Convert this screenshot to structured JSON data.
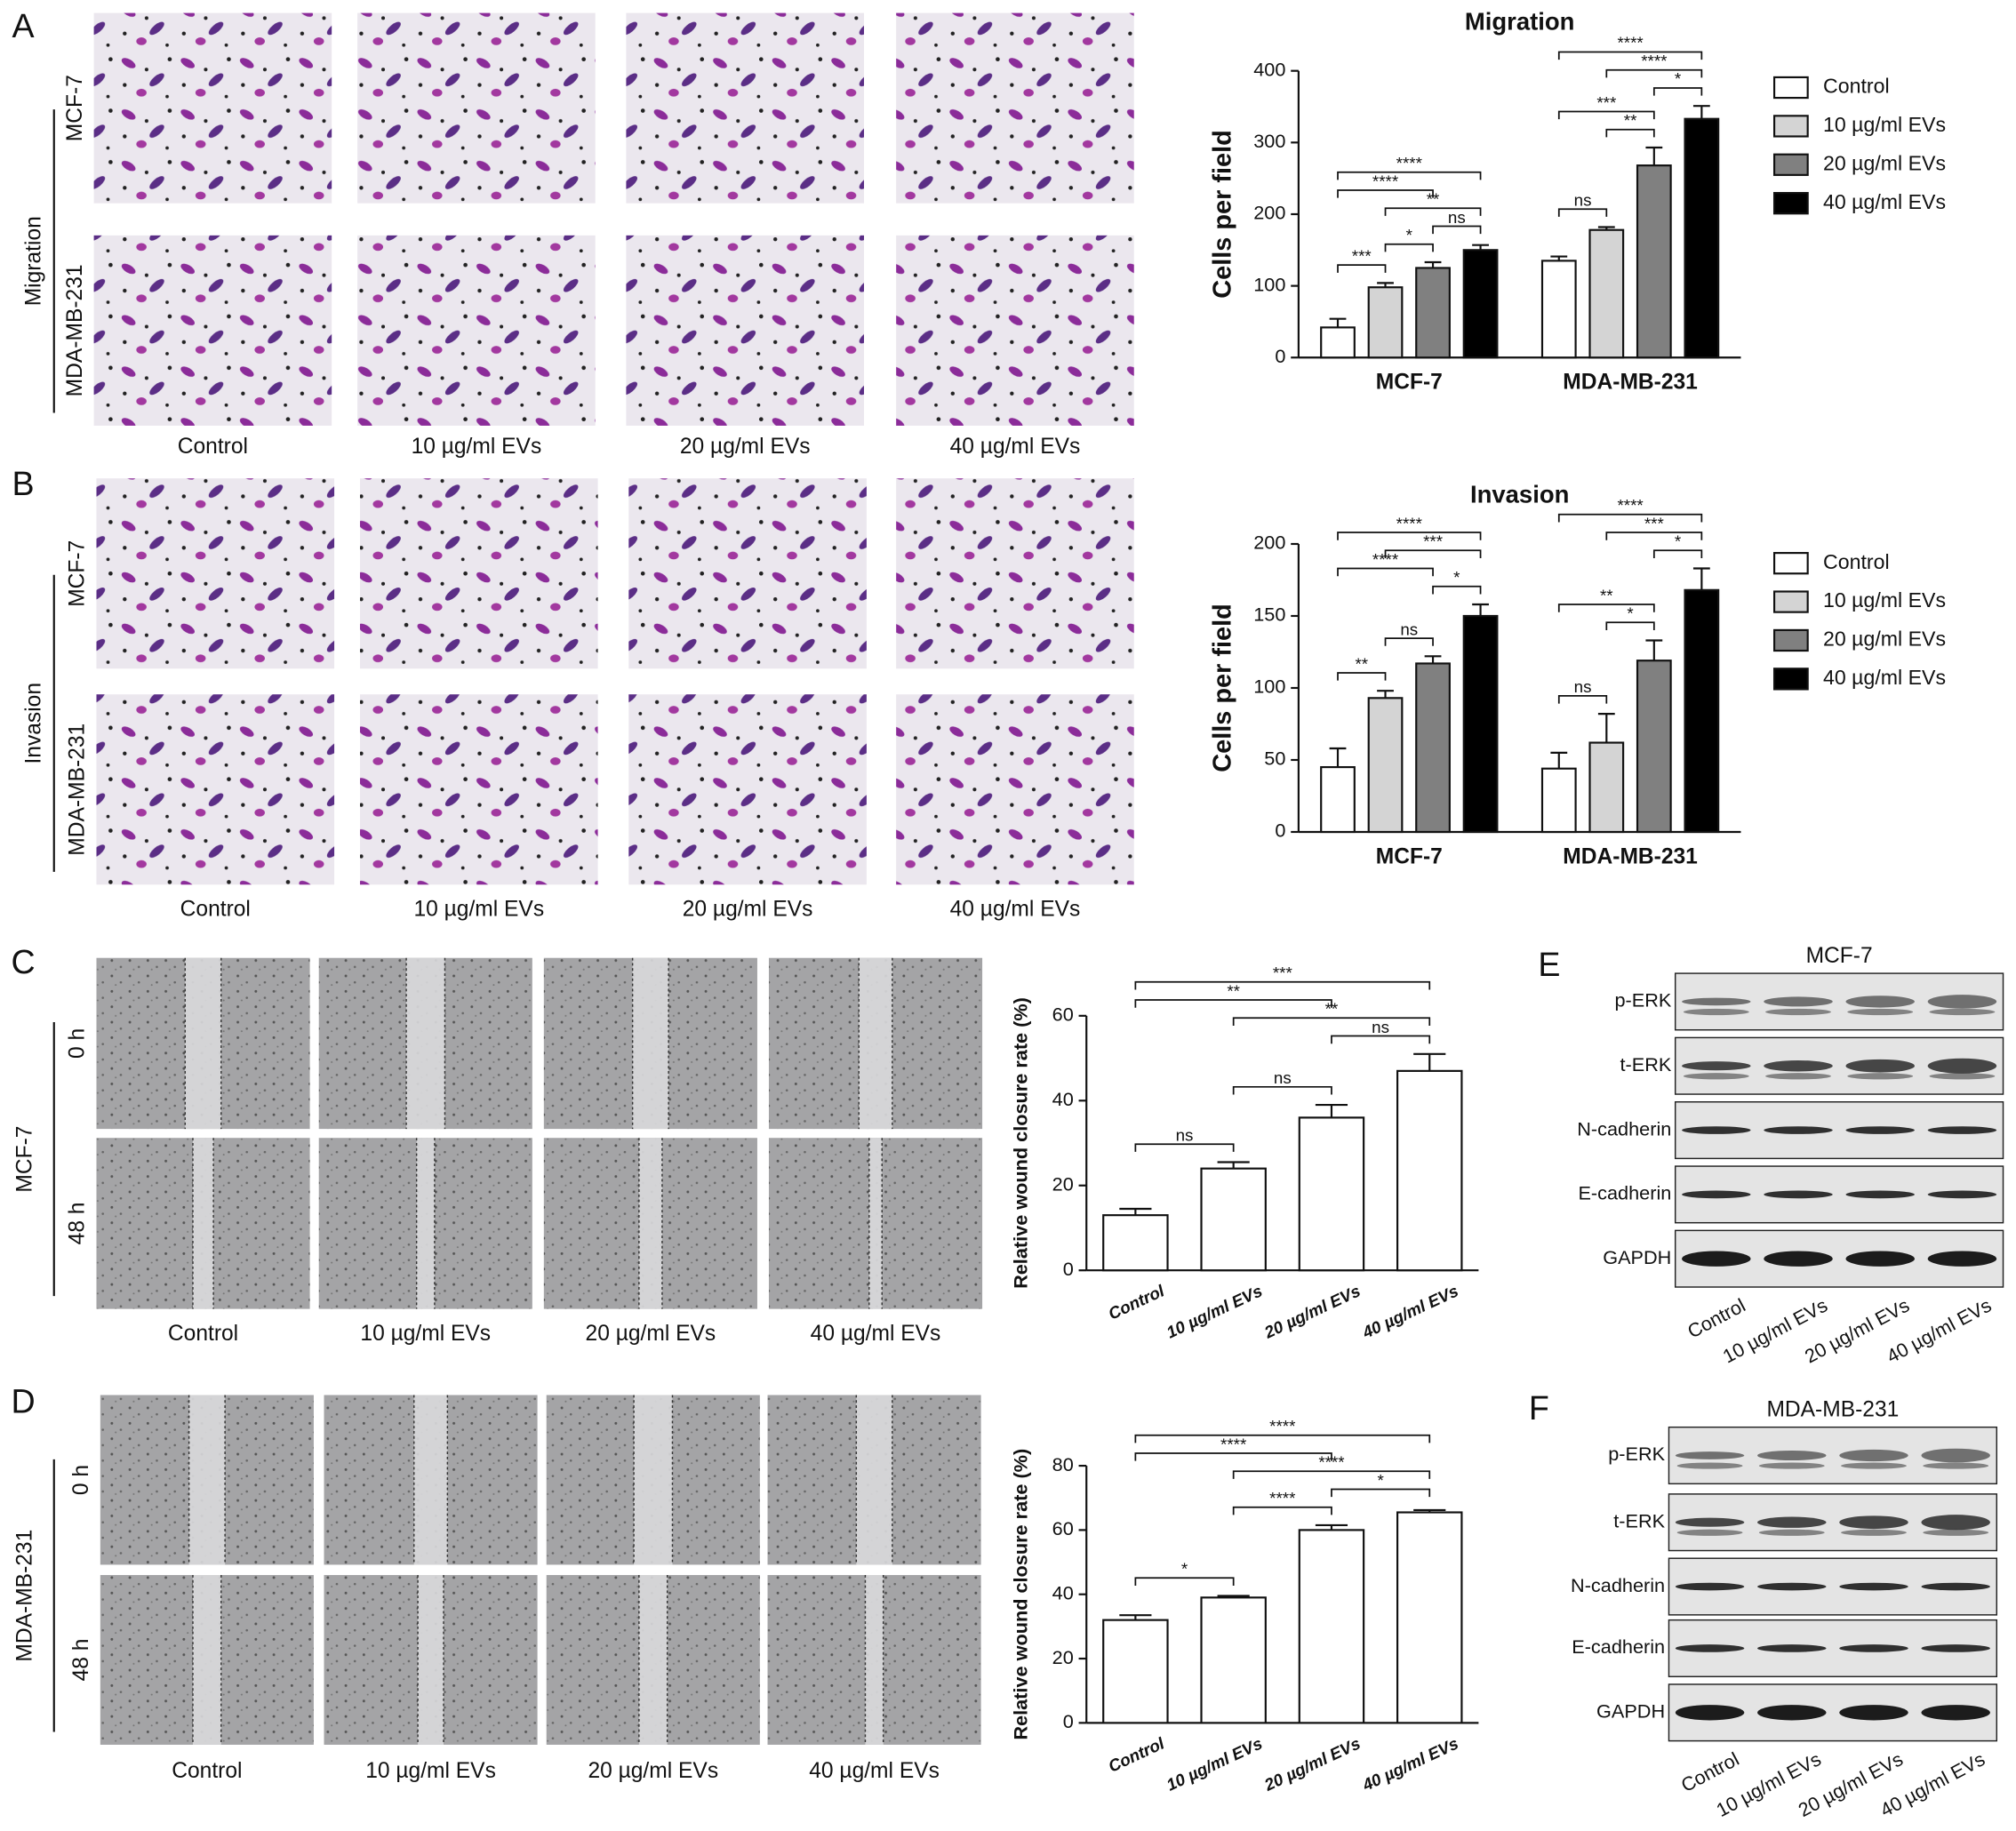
{
  "chart_data": [
    {
      "type": "bar",
      "title": "Migration",
      "ylabel": "Cells per field",
      "categories": [
        "MCF-7",
        "MDA-MB-231"
      ],
      "series": [
        {
          "name": "Control",
          "color": "#ffffff",
          "values": [
            42,
            135
          ],
          "errors": [
            12,
            6
          ]
        },
        {
          "name": "10 µg/ml EVs",
          "color": "#d4d4d4",
          "values": [
            98,
            178
          ],
          "errors": [
            6,
            4
          ]
        },
        {
          "name": "20 µg/ml EVs",
          "color": "#808080",
          "values": [
            125,
            268
          ],
          "errors": [
            8,
            25
          ]
        },
        {
          "name": "40 µg/ml EVs",
          "color": "#000000",
          "values": [
            150,
            333
          ],
          "errors": [
            7,
            18
          ]
        }
      ],
      "ylim": [
        0,
        400
      ],
      "yticks": [
        0,
        100,
        200,
        300,
        400
      ],
      "legend": "right",
      "annotations": [
        {
          "group": 0,
          "between": [
            0,
            1
          ],
          "label": "***"
        },
        {
          "group": 0,
          "between": [
            1,
            2
          ],
          "label": "*"
        },
        {
          "group": 0,
          "between": [
            2,
            3
          ],
          "label": "ns"
        },
        {
          "group": 0,
          "between": [
            1,
            3
          ],
          "label": "**"
        },
        {
          "group": 0,
          "between": [
            0,
            2
          ],
          "label": "****"
        },
        {
          "group": 0,
          "between": [
            0,
            3
          ],
          "label": "****"
        },
        {
          "group": 1,
          "between": [
            0,
            1
          ],
          "label": "ns"
        },
        {
          "group": 1,
          "between": [
            1,
            2
          ],
          "label": "**"
        },
        {
          "group": 1,
          "between": [
            0,
            2
          ],
          "label": "***"
        },
        {
          "group": 1,
          "between": [
            2,
            3
          ],
          "label": "*"
        },
        {
          "group": 1,
          "between": [
            1,
            3
          ],
          "label": "****"
        },
        {
          "group": 1,
          "between": [
            0,
            3
          ],
          "label": "****"
        }
      ]
    },
    {
      "type": "bar",
      "title": "Invasion",
      "ylabel": "Cells per field",
      "categories": [
        "MCF-7",
        "MDA-MB-231"
      ],
      "series": [
        {
          "name": "Control",
          "color": "#ffffff",
          "values": [
            45,
            44
          ],
          "errors": [
            13,
            11
          ]
        },
        {
          "name": "10 µg/ml EVs",
          "color": "#d4d4d4",
          "values": [
            93,
            62
          ],
          "errors": [
            5,
            20
          ]
        },
        {
          "name": "20 µg/ml EVs",
          "color": "#808080",
          "values": [
            117,
            119
          ],
          "errors": [
            5,
            14
          ]
        },
        {
          "name": "40 µg/ml EVs",
          "color": "#000000",
          "values": [
            150,
            168
          ],
          "errors": [
            8,
            15
          ]
        }
      ],
      "ylim": [
        0,
        200
      ],
      "yticks": [
        0,
        50,
        100,
        150,
        200
      ],
      "legend": "right",
      "annotations": [
        {
          "group": 0,
          "between": [
            0,
            1
          ],
          "label": "**"
        },
        {
          "group": 0,
          "between": [
            1,
            2
          ],
          "label": "ns"
        },
        {
          "group": 0,
          "between": [
            2,
            3
          ],
          "label": "*"
        },
        {
          "group": 0,
          "between": [
            0,
            2
          ],
          "label": "****"
        },
        {
          "group": 0,
          "between": [
            1,
            3
          ],
          "label": "***"
        },
        {
          "group": 0,
          "between": [
            0,
            3
          ],
          "label": "****"
        },
        {
          "group": 1,
          "between": [
            0,
            1
          ],
          "label": "ns"
        },
        {
          "group": 1,
          "between": [
            1,
            2
          ],
          "label": "*"
        },
        {
          "group": 1,
          "between": [
            0,
            2
          ],
          "label": "**"
        },
        {
          "group": 1,
          "between": [
            2,
            3
          ],
          "label": "*"
        },
        {
          "group": 1,
          "between": [
            1,
            3
          ],
          "label": "***"
        },
        {
          "group": 1,
          "between": [
            0,
            3
          ],
          "label": "****"
        }
      ]
    },
    {
      "type": "bar",
      "ylabel": "Relative wound closure rate (%)",
      "categories": [
        "Control",
        "10 µg/ml EVs",
        "20 µg/ml EVs",
        "40 µg/ml EVs"
      ],
      "values": [
        13,
        24,
        36,
        47
      ],
      "errors": [
        1.5,
        1.5,
        3,
        4
      ],
      "color": "#ffffff",
      "ylim": [
        0,
        60
      ],
      "yticks": [
        0,
        20,
        40,
        60
      ],
      "annotations": [
        {
          "between": [
            0,
            1
          ],
          "label": "ns"
        },
        {
          "between": [
            1,
            2
          ],
          "label": "ns"
        },
        {
          "between": [
            2,
            3
          ],
          "label": "ns"
        },
        {
          "between": [
            1,
            3
          ],
          "label": "**"
        },
        {
          "between": [
            0,
            2
          ],
          "label": "**"
        },
        {
          "between": [
            0,
            3
          ],
          "label": "***"
        }
      ]
    },
    {
      "type": "bar",
      "ylabel": "Relative wound closure rate (%)",
      "categories": [
        "Control",
        "10 µg/ml EVs",
        "20 µg/ml EVs",
        "40 µg/ml EVs"
      ],
      "values": [
        32,
        39,
        60,
        65.5
      ],
      "errors": [
        1.5,
        0.5,
        1.5,
        0.7
      ],
      "color": "#ffffff",
      "ylim": [
        0,
        80
      ],
      "yticks": [
        0,
        20,
        40,
        60,
        80
      ],
      "annotations": [
        {
          "between": [
            0,
            1
          ],
          "label": "*"
        },
        {
          "between": [
            1,
            2
          ],
          "label": "****"
        },
        {
          "between": [
            2,
            3
          ],
          "label": "*"
        },
        {
          "between": [
            1,
            3
          ],
          "label": "****"
        },
        {
          "between": [
            0,
            2
          ],
          "label": "****"
        },
        {
          "between": [
            0,
            3
          ],
          "label": "****"
        }
      ]
    }
  ],
  "micrographs": [
    {
      "letter": "A",
      "group": "Migration",
      "rows": [
        "MCF-7",
        "MDA-MB-231"
      ],
      "columns": [
        "Control",
        "10 µg/ml EVs",
        "20 µg/ml EVs",
        "40 µg/ml EVs"
      ]
    },
    {
      "letter": "B",
      "group": "Invasion",
      "rows": [
        "MCF-7",
        "MDA-MB-231"
      ],
      "columns": [
        "Control",
        "10 µg/ml EVs",
        "20 µg/ml EVs",
        "40 µg/ml EVs"
      ]
    },
    {
      "letter": "C",
      "group": "MCF-7",
      "rows": [
        "0 h",
        "48 h"
      ],
      "columns": [
        "Control",
        "10 µg/ml EVs",
        "20 µg/ml EVs",
        "40 µg/ml EVs"
      ]
    },
    {
      "letter": "D",
      "group": "MDA-MB-231",
      "rows": [
        "0 h",
        "48 h"
      ],
      "columns": [
        "Control",
        "10 µg/ml EVs",
        "20 µg/ml EVs",
        "40 µg/ml EVs"
      ]
    }
  ],
  "blots": [
    {
      "letter": "E",
      "title": "MCF-7",
      "rows": [
        "p-ERK",
        "t-ERK",
        "N-cadherin",
        "E-cadherin",
        "GAPDH"
      ],
      "lanes": [
        "Control",
        "10 µg/ml EVs",
        "20 µg/ml EVs",
        "40 µg/ml EVs"
      ]
    },
    {
      "letter": "F",
      "title": "MDA-MB-231",
      "rows": [
        "p-ERK",
        "t-ERK",
        "N-cadherin",
        "E-cadherin",
        "GAPDH"
      ],
      "lanes": [
        "Control",
        "10 µg/ml EVs",
        "20 µg/ml EVs",
        "40 µg/ml EVs"
      ]
    }
  ]
}
